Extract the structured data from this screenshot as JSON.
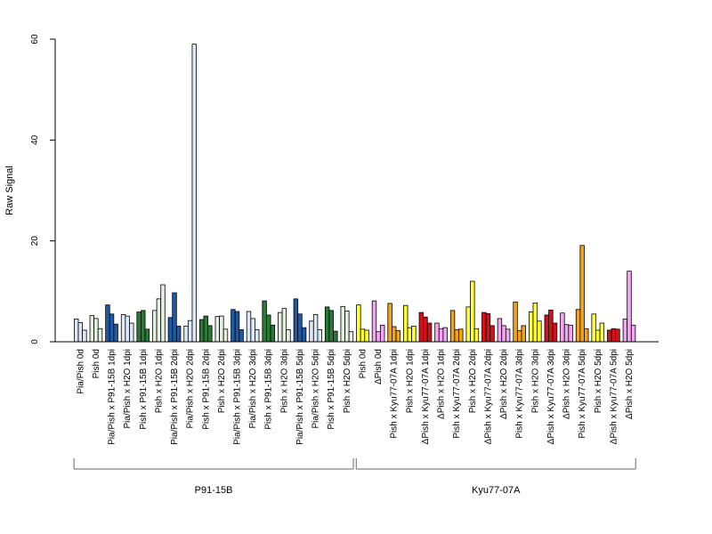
{
  "chart_data": {
    "type": "bar",
    "ylabel": "Raw Signal",
    "ylim": [
      0,
      60
    ],
    "yticks": [
      0,
      20,
      40,
      60
    ],
    "grid": false,
    "legend": "none",
    "colors": {
      "light_blue": "#dce8f5",
      "dark_blue": "#1f5aa6",
      "light_green": "#e4f0df",
      "dark_green": "#2a7a35",
      "yellow": "#ffff33",
      "pink": "#f5a6f2",
      "orange": "#f2a31a",
      "red": "#d7111b"
    },
    "groups": [
      {
        "label": "P91-15B",
        "start": 0,
        "end": 17
      },
      {
        "label": "Kyu77-07A",
        "start": 18,
        "end": 35
      }
    ],
    "categories": [
      {
        "label": "Pia/Pish 0d",
        "color": "light_blue",
        "values": [
          4.5,
          3.8,
          2.3
        ]
      },
      {
        "label": "Pish 0d",
        "color": "light_green",
        "values": [
          5.2,
          4.6,
          2.6
        ]
      },
      {
        "label": "Pia/Pish x P91-15B 1dpi",
        "color": "dark_blue",
        "values": [
          7.3,
          5.5,
          3.5
        ]
      },
      {
        "label": "Pia/Pish x H2O 1dpi",
        "color": "light_blue",
        "values": [
          5.4,
          5.1,
          3.7
        ]
      },
      {
        "label": "Pish x P91-15B 1dpi",
        "color": "dark_green",
        "values": [
          5.9,
          6.2,
          2.5
        ]
      },
      {
        "label": "Pish x H2O 1dpi",
        "color": "light_green",
        "values": [
          6.2,
          8.5,
          11.3
        ]
      },
      {
        "label": "Pia/Pish x P91-15B 2dpi",
        "color": "dark_blue",
        "values": [
          4.8,
          9.7,
          3.1
        ]
      },
      {
        "label": "Pia/Pish x H2O 2dpi",
        "color": "light_blue",
        "values": [
          3.1,
          4.2,
          59.0
        ]
      },
      {
        "label": "Pish x P91-15B 2dpi",
        "color": "dark_green",
        "values": [
          4.4,
          5.1,
          3.2
        ]
      },
      {
        "label": "Pish x H2O 2dpi",
        "color": "light_green",
        "values": [
          5.0,
          5.1,
          2.5
        ]
      },
      {
        "label": "Pia/Pish x P91-15B 3dpi",
        "color": "dark_blue",
        "values": [
          6.4,
          6.0,
          2.4
        ]
      },
      {
        "label": "Pia/Pish x H2O 3dpi",
        "color": "light_blue",
        "values": [
          6.0,
          4.6,
          2.4
        ]
      },
      {
        "label": "Pish x P91-15B 3dpi",
        "color": "dark_green",
        "values": [
          8.1,
          5.3,
          3.3
        ]
      },
      {
        "label": "Pish x H2O 3dpi",
        "color": "light_green",
        "values": [
          5.8,
          6.6,
          2.4
        ]
      },
      {
        "label": "Pia/Pish x P91-15B 5dpi",
        "color": "dark_blue",
        "values": [
          8.5,
          5.5,
          2.8
        ]
      },
      {
        "label": "Pia/Pish x H2O 5dpi",
        "color": "light_blue",
        "values": [
          4.1,
          5.4,
          2.4
        ]
      },
      {
        "label": "Pish x P91-15B 5dpi",
        "color": "dark_green",
        "values": [
          6.9,
          6.2,
          2.1
        ]
      },
      {
        "label": "Pish x H2O 5dpi",
        "color": "light_green",
        "values": [
          7.0,
          6.1,
          2.0
        ]
      },
      {
        "label": "Pish 0d",
        "color": "yellow",
        "values": [
          7.3,
          2.5,
          2.3
        ]
      },
      {
        "label": "ΔPish 0d",
        "color": "pink",
        "values": [
          8.1,
          2.0,
          3.3
        ]
      },
      {
        "label": "Pish x Kyu77-07A 1dpi",
        "color": "orange",
        "values": [
          7.6,
          3.0,
          2.2
        ]
      },
      {
        "label": "Pish x H2O 1dpi",
        "color": "yellow",
        "values": [
          7.2,
          2.8,
          3.1
        ]
      },
      {
        "label": "ΔPish x Kyu77-07A 1dpi",
        "color": "red",
        "values": [
          5.8,
          4.9,
          3.7
        ]
      },
      {
        "label": "ΔPish x H2O 1dpi",
        "color": "pink",
        "values": [
          3.7,
          2.6,
          2.8
        ]
      },
      {
        "label": "Pish x Kyu77-07A 2dpi",
        "color": "orange",
        "values": [
          6.2,
          2.4,
          2.5
        ]
      },
      {
        "label": "Pish x H2O 2dpi",
        "color": "yellow",
        "values": [
          6.9,
          12.0,
          2.6
        ]
      },
      {
        "label": "ΔPish x Kyu77-07A 2dpi",
        "color": "red",
        "values": [
          5.8,
          5.6,
          3.2
        ]
      },
      {
        "label": "ΔPish x H2O 2dpi",
        "color": "pink",
        "values": [
          4.6,
          3.2,
          2.5
        ]
      },
      {
        "label": "Pish x Kyu77-07A 3dpi",
        "color": "orange",
        "values": [
          7.9,
          2.2,
          3.2
        ]
      },
      {
        "label": "Pish x H2O 3dpi",
        "color": "yellow",
        "values": [
          5.9,
          7.7,
          4.1
        ]
      },
      {
        "label": "ΔPish x Kyu77-07A 3dpi",
        "color": "red",
        "values": [
          5.3,
          6.3,
          3.7
        ]
      },
      {
        "label": "ΔPish x H2O 3dpi",
        "color": "pink",
        "values": [
          5.7,
          3.4,
          3.3
        ]
      },
      {
        "label": "Pish x Kyu77-07A 5dpi",
        "color": "orange",
        "values": [
          6.4,
          19.1,
          2.6
        ]
      },
      {
        "label": "Pish x H2O 5dpi",
        "color": "yellow",
        "values": [
          5.5,
          2.3,
          3.7
        ]
      },
      {
        "label": "ΔPish x Kyu77-07A 5dpi",
        "color": "red",
        "values": [
          2.3,
          2.6,
          2.5
        ]
      },
      {
        "label": "ΔPish x H2O 5dpi",
        "color": "pink",
        "values": [
          4.5,
          14.0,
          3.3
        ]
      }
    ]
  }
}
